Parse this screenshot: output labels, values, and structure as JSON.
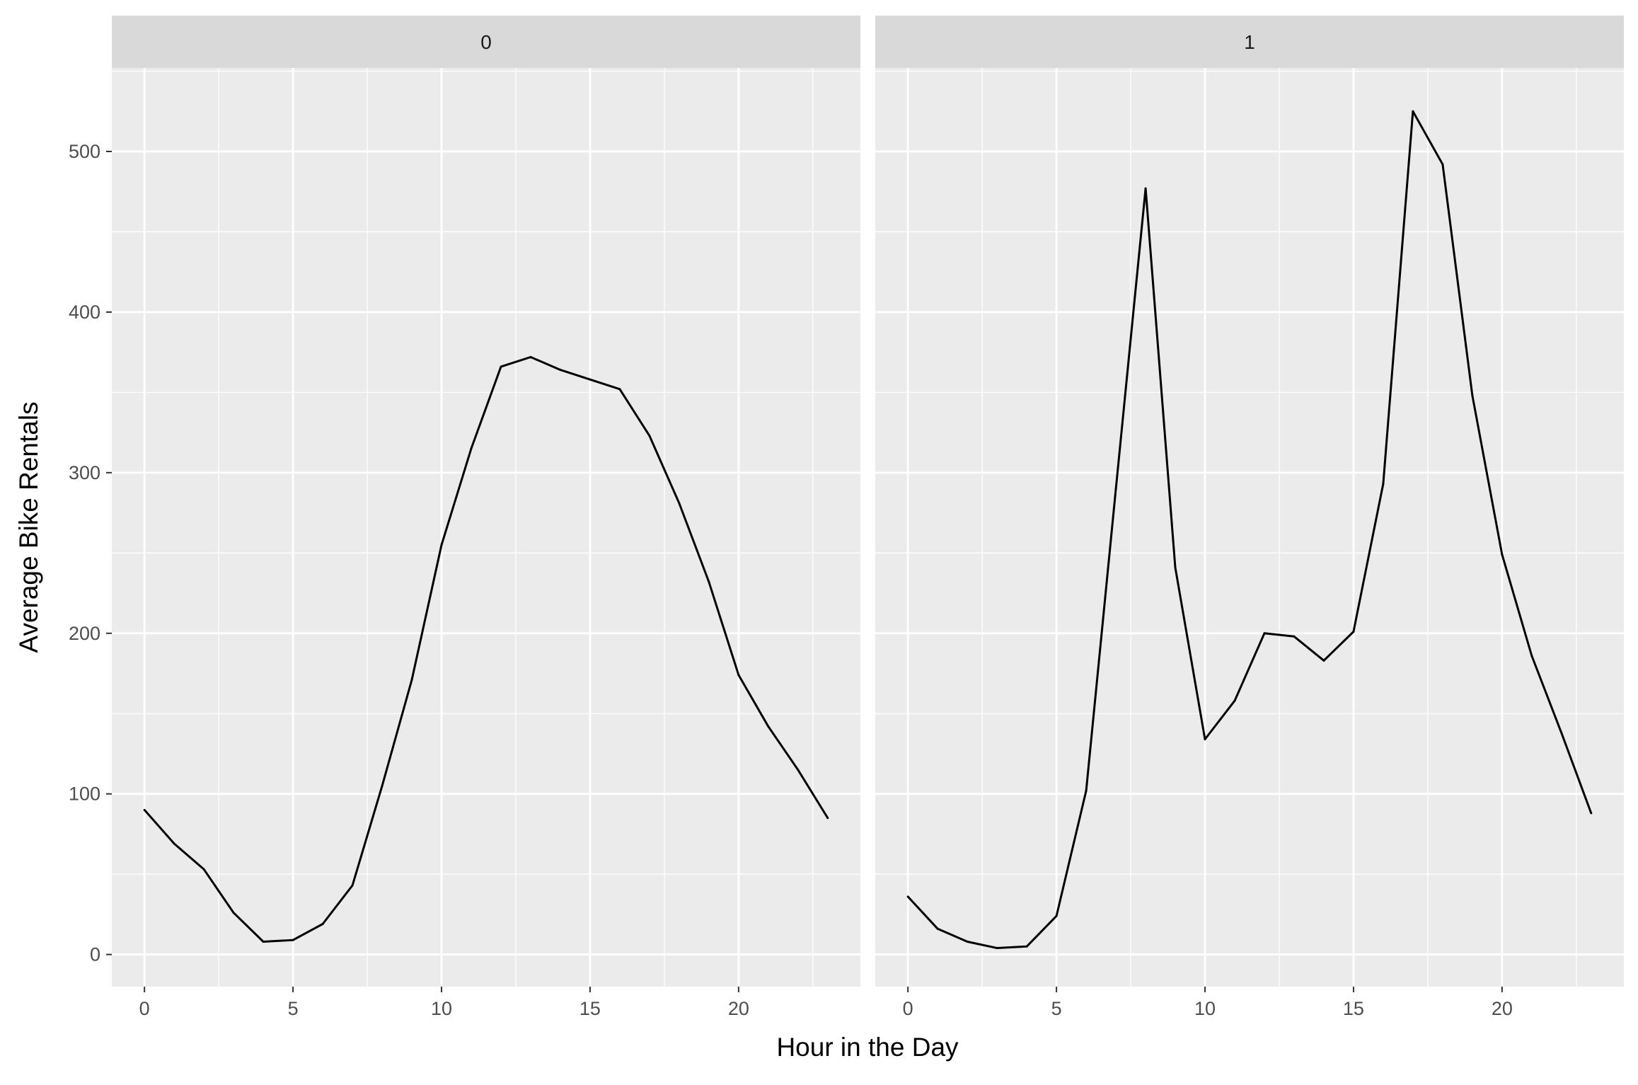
{
  "chart_data": {
    "type": "line",
    "xlabel": "Hour in the Day",
    "ylabel": "Average Bike Rentals",
    "xlim": [
      -1.1,
      24.1
    ],
    "ylim": [
      -20,
      552
    ],
    "x_ticks": [
      0,
      5,
      10,
      15,
      20
    ],
    "x_tick_labels": [
      "0",
      "5",
      "10",
      "15",
      "20"
    ],
    "y_ticks": [
      0,
      100,
      200,
      300,
      400,
      500
    ],
    "y_tick_labels": [
      "0",
      "100",
      "200",
      "300",
      "400",
      "500"
    ],
    "grid": true,
    "panel_background": "#ebebeb",
    "strip_background": "#d9d9d9",
    "line_color": "#000000",
    "facets": [
      {
        "label": "0",
        "x": [
          0,
          1,
          2,
          3,
          4,
          5,
          6,
          7,
          8,
          9,
          10,
          11,
          12,
          13,
          14,
          15,
          16,
          17,
          18,
          19,
          20,
          21,
          22,
          23
        ],
        "y": [
          90,
          69,
          53,
          26,
          8,
          9,
          19,
          43,
          105,
          171,
          255,
          315,
          366,
          372,
          364,
          358,
          352,
          323,
          281,
          232,
          174,
          142,
          115,
          85
        ]
      },
      {
        "label": "1",
        "x": [
          0,
          1,
          2,
          3,
          4,
          5,
          6,
          7,
          8,
          9,
          10,
          11,
          12,
          13,
          14,
          15,
          16,
          17,
          18,
          19,
          20,
          21,
          22,
          23
        ],
        "y": [
          36,
          16,
          8,
          4,
          5,
          24,
          102,
          290,
          477,
          241,
          134,
          158,
          200,
          198,
          183,
          201,
          293,
          525,
          492,
          348,
          249,
          186,
          138,
          88
        ]
      }
    ]
  }
}
